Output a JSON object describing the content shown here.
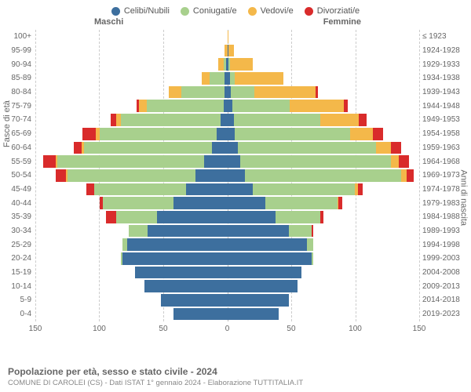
{
  "legend": [
    {
      "label": "Celibi/Nubili",
      "color": "#3d6f9e"
    },
    {
      "label": "Coniugati/e",
      "color": "#a8d08d"
    },
    {
      "label": "Vedovi/e",
      "color": "#f4b84a"
    },
    {
      "label": "Divorziati/e",
      "color": "#d92b2b"
    }
  ],
  "headers": {
    "male": "Maschi",
    "female": "Femmine"
  },
  "axis_left_title": "Fasce di età",
  "axis_right_title": "Anni di nascita",
  "x_axis": {
    "max": 150,
    "ticks": [
      150,
      100,
      50,
      0,
      50,
      100,
      150
    ]
  },
  "colors": {
    "celibi": "#3d6f9e",
    "coniugati": "#a8d08d",
    "vedovi": "#f4b84a",
    "divorziati": "#d92b2b",
    "grid": "#cccccc",
    "center_grid": "#bbbbbb",
    "text": "#666666",
    "background": "#ffffff"
  },
  "typography": {
    "font_family": "Arial",
    "label_fontsize": 10,
    "legend_fontsize": 11,
    "title_fontsize": 12
  },
  "chart_type": "population-pyramid-stacked",
  "rows": [
    {
      "age": "100+",
      "year": "≤ 1923",
      "m": [
        0,
        0,
        0,
        0
      ],
      "f": [
        0,
        0,
        1,
        0
      ]
    },
    {
      "age": "95-99",
      "year": "1924-1928",
      "m": [
        0,
        0,
        2,
        0
      ],
      "f": [
        1,
        0,
        4,
        0
      ]
    },
    {
      "age": "90-94",
      "year": "1929-1933",
      "m": [
        1,
        2,
        4,
        0
      ],
      "f": [
        1,
        1,
        18,
        0
      ]
    },
    {
      "age": "85-89",
      "year": "1934-1938",
      "m": [
        2,
        12,
        6,
        0
      ],
      "f": [
        2,
        4,
        38,
        0
      ]
    },
    {
      "age": "80-84",
      "year": "1939-1943",
      "m": [
        2,
        34,
        10,
        0
      ],
      "f": [
        3,
        18,
        48,
        2
      ]
    },
    {
      "age": "75-79",
      "year": "1944-1948",
      "m": [
        3,
        60,
        6,
        2
      ],
      "f": [
        4,
        45,
        42,
        3
      ]
    },
    {
      "age": "70-74",
      "year": "1949-1953",
      "m": [
        5,
        78,
        4,
        4
      ],
      "f": [
        5,
        68,
        30,
        6
      ]
    },
    {
      "age": "65-69",
      "year": "1954-1958",
      "m": [
        8,
        92,
        3,
        10
      ],
      "f": [
        6,
        90,
        18,
        8
      ]
    },
    {
      "age": "60-64",
      "year": "1959-1963",
      "m": [
        12,
        100,
        2,
        6
      ],
      "f": [
        8,
        108,
        12,
        8
      ]
    },
    {
      "age": "55-59",
      "year": "1964-1968",
      "m": [
        18,
        115,
        1,
        10
      ],
      "f": [
        10,
        118,
        6,
        8
      ]
    },
    {
      "age": "50-54",
      "year": "1969-1973",
      "m": [
        25,
        100,
        1,
        8
      ],
      "f": [
        14,
        122,
        4,
        6
      ]
    },
    {
      "age": "45-49",
      "year": "1974-1978",
      "m": [
        32,
        72,
        0,
        6
      ],
      "f": [
        20,
        80,
        2,
        4
      ]
    },
    {
      "age": "40-44",
      "year": "1979-1983",
      "m": [
        42,
        55,
        0,
        3
      ],
      "f": [
        30,
        56,
        1,
        3
      ]
    },
    {
      "age": "35-39",
      "year": "1984-1988",
      "m": [
        55,
        32,
        0,
        8
      ],
      "f": [
        38,
        35,
        0,
        2
      ]
    },
    {
      "age": "30-34",
      "year": "1989-1993",
      "m": [
        62,
        15,
        0,
        0
      ],
      "f": [
        48,
        18,
        0,
        1
      ]
    },
    {
      "age": "25-29",
      "year": "1994-1998",
      "m": [
        78,
        4,
        0,
        0
      ],
      "f": [
        62,
        5,
        0,
        0
      ]
    },
    {
      "age": "20-24",
      "year": "1999-2003",
      "m": [
        82,
        1,
        0,
        0
      ],
      "f": [
        66,
        1,
        0,
        0
      ]
    },
    {
      "age": "15-19",
      "year": "2004-2008",
      "m": [
        72,
        0,
        0,
        0
      ],
      "f": [
        58,
        0,
        0,
        0
      ]
    },
    {
      "age": "10-14",
      "year": "2009-2013",
      "m": [
        65,
        0,
        0,
        0
      ],
      "f": [
        55,
        0,
        0,
        0
      ]
    },
    {
      "age": "5-9",
      "year": "2014-2018",
      "m": [
        52,
        0,
        0,
        0
      ],
      "f": [
        48,
        0,
        0,
        0
      ]
    },
    {
      "age": "0-4",
      "year": "2019-2023",
      "m": [
        42,
        0,
        0,
        0
      ],
      "f": [
        40,
        0,
        0,
        0
      ]
    }
  ],
  "title": "Popolazione per età, sesso e stato civile - 2024",
  "subtitle": "COMUNE DI CAROLEI (CS) - Dati ISTAT 1° gennaio 2024 - Elaborazione TUTTITALIA.IT"
}
